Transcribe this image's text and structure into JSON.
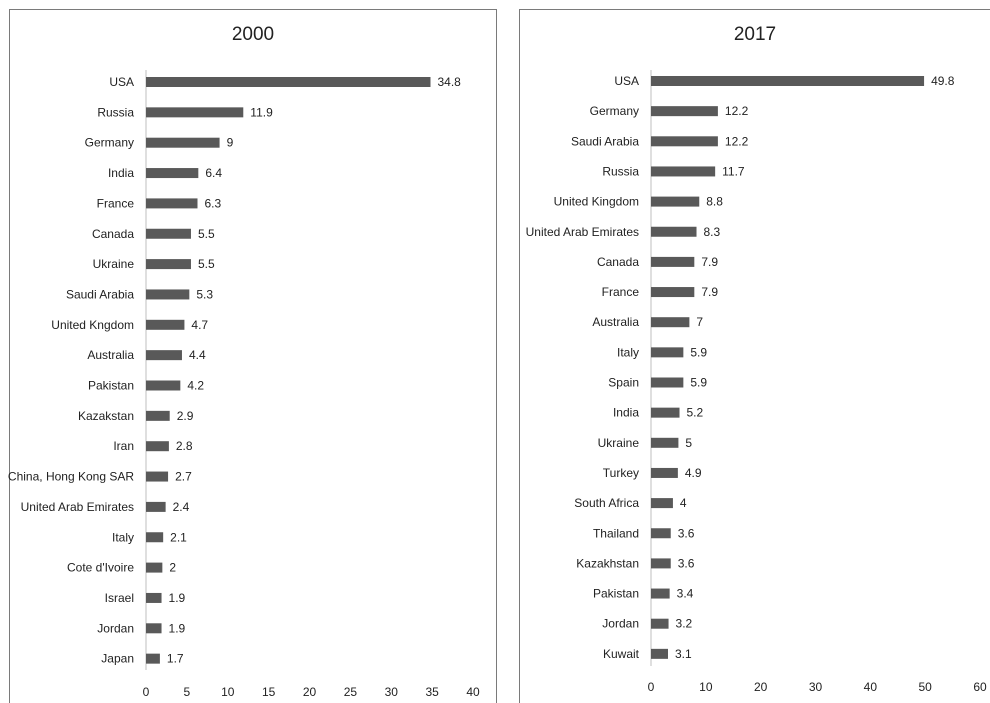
{
  "chart_data": [
    {
      "type": "bar",
      "orientation": "horizontal",
      "title": "2000",
      "categories": [
        "USA",
        "Russia",
        "Germany",
        "India",
        "France",
        "Canada",
        "Ukraine",
        "Saudi Arabia",
        "United Kngdom",
        "Australia",
        "Pakistan",
        "Kazakstan",
        "Iran",
        "China, Hong Kong SAR",
        "United Arab Emirates",
        "Italy",
        "Cote d'Ivoire",
        "Israel",
        "Jordan",
        "Japan"
      ],
      "values": [
        34.8,
        11.9,
        9,
        6.4,
        6.3,
        5.5,
        5.5,
        5.3,
        4.7,
        4.4,
        4.2,
        2.9,
        2.8,
        2.7,
        2.4,
        2.1,
        2,
        1.9,
        1.9,
        1.7
      ],
      "value_labels": [
        "34.8",
        "11.9",
        "9",
        "6.4",
        "6.3",
        "5.5",
        "5.5",
        "5.3",
        "4.7",
        "4.4",
        "4.2",
        "2.9",
        "2.8",
        "2.7",
        "2.4",
        "2.1",
        "2",
        "1.9",
        "1.9",
        "1.7"
      ],
      "xlim": [
        0,
        40
      ],
      "xticks": [
        "0",
        "5",
        "10",
        "15",
        "20",
        "25",
        "30",
        "35",
        "40"
      ],
      "bar_color": "#595959",
      "grid": false
    },
    {
      "type": "bar",
      "orientation": "horizontal",
      "title": "2017",
      "categories": [
        "USA",
        "Germany",
        "Saudi Arabia",
        "Russia",
        "United Kingdom",
        "United Arab Emirates",
        "Canada",
        "France",
        "Australia",
        "Italy",
        "Spain",
        "India",
        "Ukraine",
        "Turkey",
        "South Africa",
        "Thailand",
        "Kazakhstan",
        "Pakistan",
        "Jordan",
        "Kuwait"
      ],
      "values": [
        49.8,
        12.2,
        12.2,
        11.7,
        8.8,
        8.3,
        7.9,
        7.9,
        7,
        5.9,
        5.9,
        5.2,
        5,
        4.9,
        4,
        3.6,
        3.6,
        3.4,
        3.2,
        3.1
      ],
      "value_labels": [
        "49.8",
        "12.2",
        "12.2",
        "11.7",
        "8.8",
        "8.3",
        "7.9",
        "7.9",
        "7",
        "5.9",
        "5.9",
        "5.2",
        "5",
        "4.9",
        "4",
        "3.6",
        "3.6",
        "3.4",
        "3.2",
        "3.1"
      ],
      "xlim": [
        0,
        60
      ],
      "xticks": [
        "0",
        "10",
        "20",
        "30",
        "40",
        "50",
        "60"
      ],
      "bar_color": "#595959",
      "grid": false
    }
  ]
}
